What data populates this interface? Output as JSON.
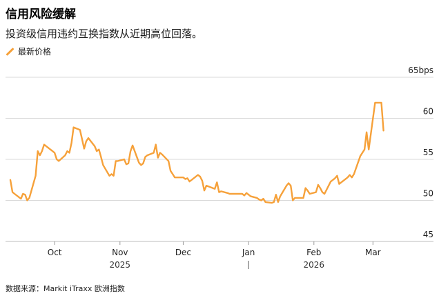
{
  "header": {
    "title": "信用风险缓解",
    "subtitle": "投资级信用违约互换指数从近期高位回落。"
  },
  "legend": {
    "label": "最新价格"
  },
  "footer": {
    "source": "数据来源：Markit iTraxx 欧洲指数"
  },
  "colors": {
    "line": "#f6a13a",
    "grid": "#d9d9d9"
  },
  "chart_data": {
    "type": "line",
    "title": "信用风险缓解",
    "subtitle": "投资级信用违约互换指数从近期高位回落。",
    "ylim": [
      45,
      65
    ],
    "yticks": [
      {
        "value": 65,
        "label": "65bps"
      },
      {
        "value": 60,
        "label": "60"
      },
      {
        "value": 55,
        "label": "55"
      },
      {
        "value": 50,
        "label": "50"
      },
      {
        "value": 45,
        "label": "45"
      }
    ],
    "x_domain": [
      "2025-09-10",
      "2026-03-14"
    ],
    "xticks": [
      {
        "date": "2025-10-01",
        "label": "Oct"
      },
      {
        "date": "2025-11-01",
        "label": "Nov"
      },
      {
        "date": "2025-12-01",
        "label": "Dec"
      },
      {
        "date": "2026-01-01",
        "label": "Jan"
      },
      {
        "date": "2026-02-01",
        "label": "Feb"
      },
      {
        "date": "2026-03-01",
        "label": "Mar"
      }
    ],
    "year_labels": [
      {
        "date": "2025-11-01",
        "label": "2025"
      },
      {
        "date": "2026-02-01",
        "label": "2026"
      }
    ],
    "year_separator": "2026-01-01",
    "series": [
      {
        "name": "最新价格",
        "points": [
          [
            "2025-09-10",
            52.5
          ],
          [
            "2025-09-11",
            51.0
          ],
          [
            "2025-09-12",
            50.8
          ],
          [
            "2025-09-15",
            50.2
          ],
          [
            "2025-09-16",
            50.8
          ],
          [
            "2025-09-17",
            50.7
          ],
          [
            "2025-09-18",
            50.0
          ],
          [
            "2025-09-19",
            50.3
          ],
          [
            "2025-09-22",
            53.0
          ],
          [
            "2025-09-23",
            56.0
          ],
          [
            "2025-09-24",
            55.5
          ],
          [
            "2025-09-25",
            56.0
          ],
          [
            "2025-09-26",
            56.8
          ],
          [
            "2025-09-29",
            56.2
          ],
          [
            "2025-09-30",
            56.0
          ],
          [
            "2025-10-01",
            55.8
          ],
          [
            "2025-10-02",
            55.0
          ],
          [
            "2025-10-03",
            54.8
          ],
          [
            "2025-10-06",
            55.5
          ],
          [
            "2025-10-07",
            56.0
          ],
          [
            "2025-10-08",
            55.8
          ],
          [
            "2025-10-09",
            57.0
          ],
          [
            "2025-10-10",
            58.9
          ],
          [
            "2025-10-13",
            58.6
          ],
          [
            "2025-10-14",
            57.5
          ],
          [
            "2025-10-15",
            56.3
          ],
          [
            "2025-10-16",
            57.2
          ],
          [
            "2025-10-17",
            57.6
          ],
          [
            "2025-10-20",
            56.6
          ],
          [
            "2025-10-21",
            56.0
          ],
          [
            "2025-10-22",
            56.2
          ],
          [
            "2025-10-23",
            55.3
          ],
          [
            "2025-10-24",
            54.3
          ],
          [
            "2025-10-27",
            53.0
          ],
          [
            "2025-10-28",
            53.2
          ],
          [
            "2025-10-29",
            53.0
          ],
          [
            "2025-10-30",
            54.8
          ],
          [
            "2025-10-31",
            54.8
          ],
          [
            "2025-11-03",
            55.0
          ],
          [
            "2025-11-04",
            54.4
          ],
          [
            "2025-11-05",
            54.5
          ],
          [
            "2025-11-06",
            56.0
          ],
          [
            "2025-11-07",
            56.7
          ],
          [
            "2025-11-10",
            54.6
          ],
          [
            "2025-11-11",
            54.3
          ],
          [
            "2025-11-12",
            54.5
          ],
          [
            "2025-11-13",
            55.3
          ],
          [
            "2025-11-14",
            55.5
          ],
          [
            "2025-11-17",
            55.8
          ],
          [
            "2025-11-18",
            56.8
          ],
          [
            "2025-11-19",
            55.2
          ],
          [
            "2025-11-20",
            55.8
          ],
          [
            "2025-11-21",
            55.6
          ],
          [
            "2025-11-24",
            54.8
          ],
          [
            "2025-11-25",
            53.6
          ],
          [
            "2025-11-26",
            53.2
          ],
          [
            "2025-11-27",
            52.8
          ],
          [
            "2025-11-28",
            52.8
          ],
          [
            "2025-12-01",
            52.8
          ],
          [
            "2025-12-02",
            52.6
          ],
          [
            "2025-12-03",
            52.7
          ],
          [
            "2025-12-04",
            52.3
          ],
          [
            "2025-12-05",
            52.5
          ],
          [
            "2025-12-08",
            53.1
          ],
          [
            "2025-12-09",
            52.9
          ],
          [
            "2025-12-10",
            52.4
          ],
          [
            "2025-12-11",
            51.2
          ],
          [
            "2025-12-12",
            51.8
          ],
          [
            "2025-12-15",
            51.5
          ],
          [
            "2025-12-16",
            51.4
          ],
          [
            "2025-12-17",
            52.2
          ],
          [
            "2025-12-18",
            51.0
          ],
          [
            "2025-12-19",
            51.1
          ],
          [
            "2025-12-22",
            50.9
          ],
          [
            "2025-12-23",
            50.8
          ],
          [
            "2025-12-29",
            50.8
          ],
          [
            "2025-12-30",
            50.6
          ],
          [
            "2025-12-31",
            50.9
          ],
          [
            "2026-01-02",
            50.5
          ],
          [
            "2026-01-05",
            50.3
          ],
          [
            "2026-01-06",
            50.1
          ],
          [
            "2026-01-07",
            50.0
          ],
          [
            "2026-01-08",
            50.2
          ],
          [
            "2026-01-09",
            49.8
          ],
          [
            "2026-01-12",
            49.7
          ],
          [
            "2026-01-13",
            49.8
          ],
          [
            "2026-01-14",
            50.7
          ],
          [
            "2026-01-15",
            49.8
          ],
          [
            "2026-01-16",
            50.5
          ],
          [
            "2026-01-19",
            51.8
          ],
          [
            "2026-01-20",
            52.1
          ],
          [
            "2026-01-21",
            51.8
          ],
          [
            "2026-01-22",
            50.0
          ],
          [
            "2026-01-23",
            50.3
          ],
          [
            "2026-01-26",
            50.3
          ],
          [
            "2026-01-27",
            50.3
          ],
          [
            "2026-01-28",
            51.5
          ],
          [
            "2026-01-29",
            51.2
          ],
          [
            "2026-01-30",
            50.8
          ],
          [
            "2026-02-02",
            51.0
          ],
          [
            "2026-02-03",
            51.9
          ],
          [
            "2026-02-04",
            51.5
          ],
          [
            "2026-02-05",
            51.0
          ],
          [
            "2026-02-06",
            50.8
          ],
          [
            "2026-02-09",
            52.3
          ],
          [
            "2026-02-10",
            52.5
          ],
          [
            "2026-02-11",
            52.7
          ],
          [
            "2026-02-12",
            53.0
          ],
          [
            "2026-02-13",
            52.0
          ],
          [
            "2026-02-16",
            52.6
          ],
          [
            "2026-02-17",
            52.8
          ],
          [
            "2026-02-18",
            53.1
          ],
          [
            "2026-02-19",
            52.8
          ],
          [
            "2026-02-20",
            53.2
          ],
          [
            "2026-02-23",
            55.4
          ],
          [
            "2026-02-24",
            55.8
          ],
          [
            "2026-02-25",
            56.2
          ],
          [
            "2026-02-26",
            58.3
          ],
          [
            "2026-02-27",
            56.2
          ],
          [
            "2026-03-02",
            61.9
          ],
          [
            "2026-03-03",
            61.9
          ],
          [
            "2026-03-04",
            61.9
          ],
          [
            "2026-03-05",
            61.9
          ],
          [
            "2026-03-06",
            58.5
          ]
        ]
      }
    ],
    "grid": true
  }
}
